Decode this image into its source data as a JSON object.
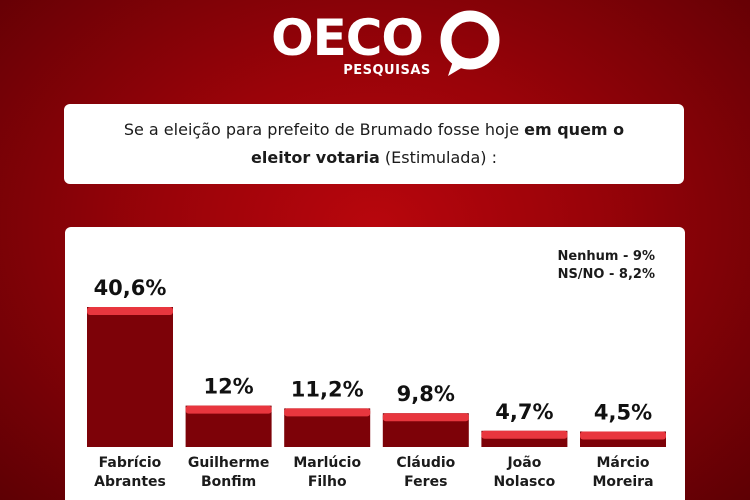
{
  "brand": {
    "name": "OECO",
    "subtitle": "PESQUISAS"
  },
  "question": {
    "part1": "Se a eleição para prefeito de Brumado fosse hoje ",
    "bold": "em quem o eleitor votaria",
    "part2": " (Estimulada) :"
  },
  "notes": {
    "nenhum": "Nenhum - 9%",
    "nsno": "NS/NO - 8,2%"
  },
  "colors": {
    "background": "#a0040a",
    "bar_body": "#7d0208",
    "bar_top": "#e8363e"
  },
  "chart_data": {
    "type": "bar",
    "categories": [
      "Fabrício Abrantes",
      "Guilherme Bonfim",
      "Marlúcio Filho",
      "Cláudio Feres",
      "João Nolasco",
      "Márcio Moreira"
    ],
    "category_lines": [
      [
        "Fabrício",
        "Abrantes"
      ],
      [
        "Guilherme",
        "Bonfim"
      ],
      [
        "Marlúcio",
        "Filho"
      ],
      [
        "Cláudio",
        "Feres"
      ],
      [
        "João",
        "Nolasco"
      ],
      [
        "Márcio",
        "Moreira"
      ]
    ],
    "values": [
      40.6,
      12,
      11.2,
      9.8,
      4.7,
      4.5
    ],
    "data_labels": [
      "40,6%",
      "12%",
      "11,2%",
      "9,8%",
      "4,7%",
      "4,5%"
    ],
    "ylim": [
      0,
      40.6
    ],
    "grid": false,
    "legend": "none"
  }
}
